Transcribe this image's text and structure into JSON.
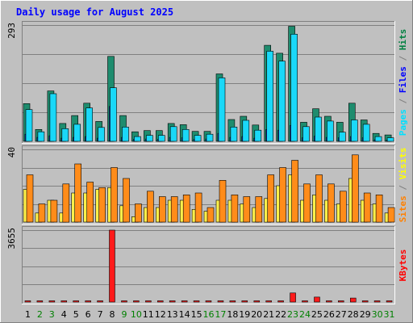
{
  "chart_data": {
    "type": "bar",
    "title": "Daily usage for August 2025",
    "days": [
      "1",
      "2",
      "3",
      "4",
      "5",
      "6",
      "7",
      "8",
      "9",
      "10",
      "11",
      "12",
      "13",
      "14",
      "15",
      "16",
      "17",
      "18",
      "19",
      "20",
      "21",
      "22",
      "23",
      "24",
      "25",
      "26",
      "27",
      "28",
      "29",
      "30",
      "31"
    ],
    "weekend_days": [
      "2",
      "3",
      "9",
      "10",
      "16",
      "17",
      "23",
      "24",
      "30",
      "31"
    ],
    "panels": [
      {
        "id": "hits_files_pages",
        "max_label": "293",
        "ylim": [
          0,
          293
        ],
        "right_label_parts": [
          {
            "text": "Pages",
            "color": "#00e0ff"
          },
          {
            "text": " / ",
            "color": "#808080"
          },
          {
            "text": "Files",
            "color": "#0000ff"
          },
          {
            "text": " / ",
            "color": "#808080"
          },
          {
            "text": "Hits",
            "color": "#008040"
          }
        ],
        "series": [
          {
            "name": "Hits",
            "color": "#1e8c6e",
            "values": [
              95,
              30,
              127,
              45,
              65,
              96,
              50,
              214,
              65,
              24,
              27,
              27,
              45,
              42,
              25,
              25,
              170,
              55,
              63,
              41,
              242,
              222,
              290,
              48,
              82,
              63,
              48,
              96,
              54,
              20,
              16
            ]
          },
          {
            "name": "Files",
            "color": "#1a3cff",
            "values": [
              18,
              10,
              14,
              8,
              10,
              12,
              8,
              88,
              10,
              5,
              6,
              5,
              10,
              9,
              5,
              6,
              20,
              10,
              12,
              8,
              30,
              28,
              40,
              9,
              13,
              10,
              9,
              12,
              9,
              4,
              3
            ]
          },
          {
            "name": "Pages",
            "color": "#1ad8f8",
            "values": [
              80,
              24,
              120,
              32,
              43,
              84,
              35,
              135,
              36,
              12,
              15,
              15,
              37,
              30,
              15,
              18,
              160,
              36,
              53,
              28,
              227,
              202,
              270,
              37,
              61,
              51,
              23,
              54,
              43,
              12,
              9
            ]
          }
        ]
      },
      {
        "id": "visits_sites",
        "max_label": "40",
        "ylim": [
          0,
          40
        ],
        "right_label_parts": [
          {
            "text": "Sites",
            "color": "#ff8000"
          },
          {
            "text": " / ",
            "color": "#808080"
          },
          {
            "text": "Visits",
            "color": "#ffff00"
          }
        ],
        "series": [
          {
            "name": "Visits",
            "color": "#fff04a",
            "values": [
              18,
              5,
              12,
              5,
              16,
              16,
              18,
              19,
              9,
              3,
              8,
              8,
              12,
              12,
              7,
              6,
              12,
              12,
              10,
              8,
              13,
              20,
              26,
              12,
              15,
              12,
              10,
              24,
              12,
              10,
              5
            ]
          },
          {
            "name": "Sites",
            "color": "#ff8c1a",
            "values": [
              26,
              10,
              12,
              21,
              32,
              22,
              19,
              30,
              24,
              10,
              17,
              14,
              14,
              15,
              16,
              8,
              23,
              15,
              14,
              14,
              26,
              30,
              34,
              21,
              26,
              21,
              17,
              37,
              16,
              15,
              8
            ]
          }
        ]
      },
      {
        "id": "kbytes",
        "max_label": "3655",
        "ylim": [
          0,
          3655
        ],
        "right_label_parts": [
          {
            "text": "KBytes",
            "color": "#ff0000"
          }
        ],
        "series": [
          {
            "name": "KBytes",
            "color": "#ff1a1a",
            "values": [
              60,
              60,
              60,
              60,
              60,
              60,
              60,
              3655,
              60,
              60,
              60,
              60,
              60,
              60,
              60,
              60,
              60,
              60,
              60,
              60,
              60,
              60,
              460,
              60,
              250,
              60,
              60,
              200,
              60,
              60,
              60
            ]
          }
        ]
      }
    ],
    "grid": true,
    "legend": "right"
  },
  "colors": {
    "title": "#0000ff",
    "frame_bg": "#c0c0c0",
    "gridline": "#808080",
    "weekday_label": "#000000",
    "weekend_label": "#008000"
  }
}
